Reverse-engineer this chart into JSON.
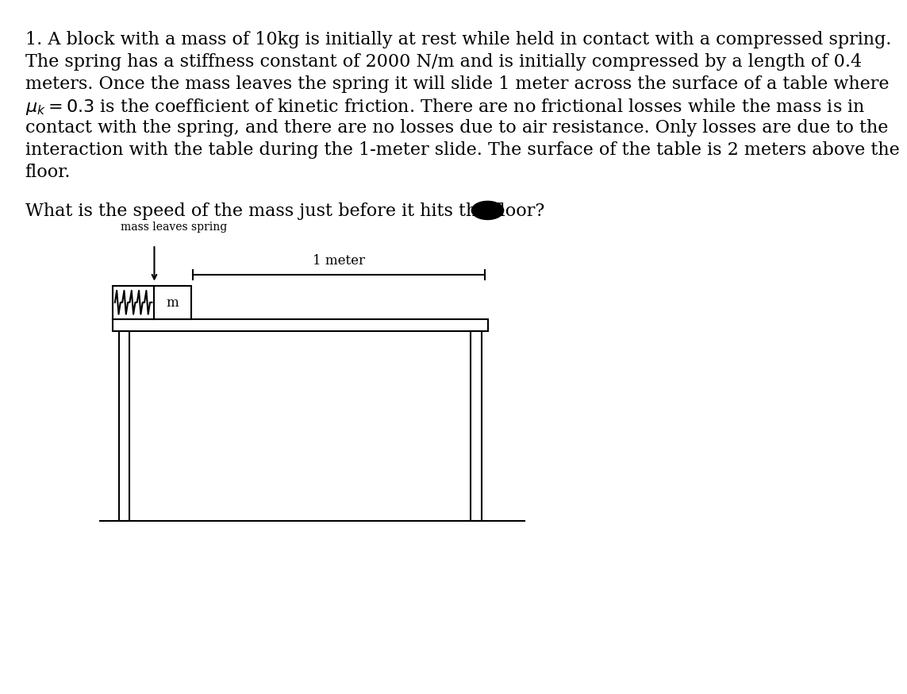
{
  "background_color": "#ffffff",
  "text_lines": [
    "1. A block with a mass of 10kg is initially at rest while held in contact with a compressed spring.",
    "The spring has a stiffness constant of 2000 N/m and is initially compressed by a length of 0.4",
    "meters. Once the mass leaves the spring it will slide 1 meter across the surface of a table where",
    "$\\mu_k = 0.3$ is the coefficient of kinetic friction. There are no frictional losses while the mass is in",
    "contact with the spring, and there are no losses due to air resistance. Only losses are due to the",
    "interaction with the table during the 1-meter slide. The surface of the table is 2 meters above the",
    "floor."
  ],
  "question_text": "What is the speed of the mass just before it hits the floor?",
  "diagram_label_spring": "mass leaves spring",
  "diagram_label_meter": "1 meter",
  "diagram_label_mass": "m",
  "font_size_body": 16,
  "font_size_question": 16,
  "font_size_diagram_label": 10,
  "font_size_mass_label": 12,
  "line_color": "#000000"
}
